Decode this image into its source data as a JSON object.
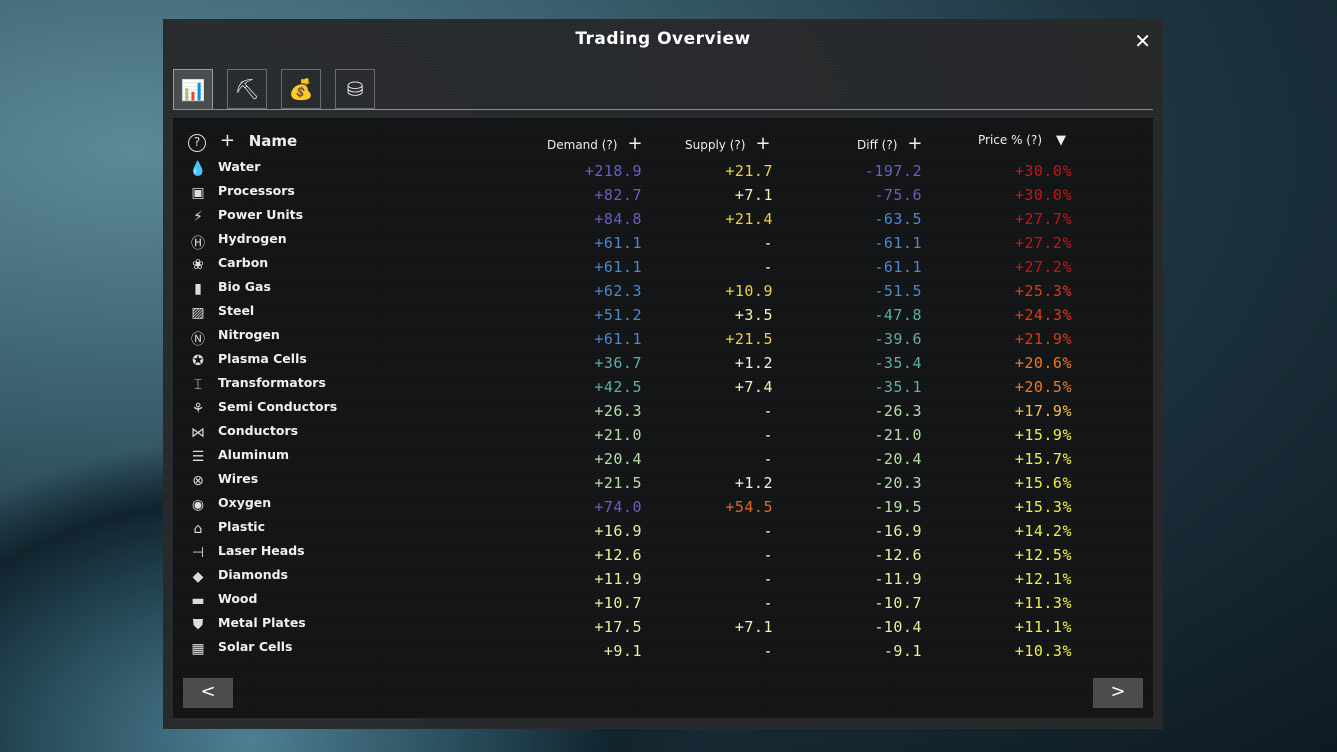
{
  "window": {
    "title": "Trading Overview",
    "close": "✕"
  },
  "tabs": [
    {
      "icon": "bar-chart-icon",
      "glyph": "📊"
    },
    {
      "icon": "trade-coins-icon",
      "glyph": "⛏"
    },
    {
      "icon": "money-bag-icon",
      "glyph": "💰"
    },
    {
      "icon": "coin-stacks-icon",
      "glyph": "⛁"
    }
  ],
  "header": {
    "help": "?",
    "add": "+",
    "name": "Name",
    "demand": "Demand (?)",
    "supply": "Supply (?)",
    "diff": "Diff (?)",
    "price": "Price % (?)",
    "sort": "▼"
  },
  "colors": {
    "purple": "#6a5ec4",
    "blue": "#4a8ad2",
    "teal": "#5cb0a6",
    "green": "#b6deaa",
    "lime": "#e4f29a",
    "yellow": "#f2d040",
    "lyellow": "#f8f2b0",
    "white": "#f4f4e0",
    "orange": "#e86424",
    "red": "#c41616",
    "redorange": "#e43618",
    "orange2": "#f07a22",
    "amber": "#f2c234",
    "yel2": "#f2f044"
  },
  "rows": [
    {
      "name": "Water",
      "icon": "water-drop-icon",
      "g": "💧",
      "demand": "+218.9",
      "dc": "purple",
      "supply": "+21.7",
      "sc": "yellow",
      "diff": "-197.2",
      "fc": "purple",
      "price": "+30.0%",
      "pc": "red"
    },
    {
      "name": "Processors",
      "icon": "processor-icon",
      "g": "▣",
      "demand": "+82.7",
      "dc": "purple",
      "supply": "+7.1",
      "sc": "lyellow",
      "diff": "-75.6",
      "fc": "purple",
      "price": "+30.0%",
      "pc": "red"
    },
    {
      "name": "Power Units",
      "icon": "power-unit-icon",
      "g": "⚡",
      "demand": "+84.8",
      "dc": "purple",
      "supply": "+21.4",
      "sc": "yellow",
      "diff": "-63.5",
      "fc": "blue",
      "price": "+27.7%",
      "pc": "red"
    },
    {
      "name": "Hydrogen",
      "icon": "hydrogen-icon",
      "g": "Ⓗ",
      "demand": "+61.1",
      "dc": "blue",
      "supply": "-",
      "sc": "white",
      "diff": "-61.1",
      "fc": "blue",
      "price": "+27.2%",
      "pc": "red"
    },
    {
      "name": "Carbon",
      "icon": "carbon-icon",
      "g": "❀",
      "demand": "+61.1",
      "dc": "blue",
      "supply": "-",
      "sc": "white",
      "diff": "-61.1",
      "fc": "blue",
      "price": "+27.2%",
      "pc": "red"
    },
    {
      "name": "Bio Gas",
      "icon": "bio-gas-icon",
      "g": "▮",
      "demand": "+62.3",
      "dc": "blue",
      "supply": "+10.9",
      "sc": "yellow",
      "diff": "-51.5",
      "fc": "blue",
      "price": "+25.3%",
      "pc": "redorange"
    },
    {
      "name": "Steel",
      "icon": "steel-icon",
      "g": "▨",
      "demand": "+51.2",
      "dc": "blue",
      "supply": "+3.5",
      "sc": "lyellow",
      "diff": "-47.8",
      "fc": "teal",
      "price": "+24.3%",
      "pc": "redorange"
    },
    {
      "name": "Nitrogen",
      "icon": "nitrogen-icon",
      "g": "Ⓝ",
      "demand": "+61.1",
      "dc": "blue",
      "supply": "+21.5",
      "sc": "yellow",
      "diff": "-39.6",
      "fc": "teal",
      "price": "+21.9%",
      "pc": "redorange"
    },
    {
      "name": "Plasma Cells",
      "icon": "plasma-cells-icon",
      "g": "✪",
      "demand": "+36.7",
      "dc": "teal",
      "supply": "+1.2",
      "sc": "white",
      "diff": "-35.4",
      "fc": "teal",
      "price": "+20.6%",
      "pc": "orange2"
    },
    {
      "name": "Transformators",
      "icon": "transformator-icon",
      "g": "⌶",
      "demand": "+42.5",
      "dc": "teal",
      "supply": "+7.4",
      "sc": "lyellow",
      "diff": "-35.1",
      "fc": "teal",
      "price": "+20.5%",
      "pc": "orange2"
    },
    {
      "name": "Semi Conductors",
      "icon": "semi-conductor-icon",
      "g": "⚘",
      "demand": "+26.3",
      "dc": "green",
      "supply": "-",
      "sc": "white",
      "diff": "-26.3",
      "fc": "green",
      "price": "+17.9%",
      "pc": "amber"
    },
    {
      "name": "Conductors",
      "icon": "conductor-icon",
      "g": "⋈",
      "demand": "+21.0",
      "dc": "green",
      "supply": "-",
      "sc": "white",
      "diff": "-21.0",
      "fc": "green",
      "price": "+15.9%",
      "pc": "yel2"
    },
    {
      "name": "Aluminum",
      "icon": "aluminum-icon",
      "g": "☰",
      "demand": "+20.4",
      "dc": "green",
      "supply": "-",
      "sc": "white",
      "diff": "-20.4",
      "fc": "green",
      "price": "+15.7%",
      "pc": "yel2"
    },
    {
      "name": "Wires",
      "icon": "wires-icon",
      "g": "⊗",
      "demand": "+21.5",
      "dc": "green",
      "supply": "+1.2",
      "sc": "white",
      "diff": "-20.3",
      "fc": "green",
      "price": "+15.6%",
      "pc": "yel2"
    },
    {
      "name": "Oxygen",
      "icon": "oxygen-icon",
      "g": "◉",
      "demand": "+74.0",
      "dc": "purple",
      "supply": "+54.5",
      "sc": "orange",
      "diff": "-19.5",
      "fc": "green",
      "price": "+15.3%",
      "pc": "yel2"
    },
    {
      "name": "Plastic",
      "icon": "plastic-icon",
      "g": "⌂",
      "demand": "+16.9",
      "dc": "lime",
      "supply": "-",
      "sc": "white",
      "diff": "-16.9",
      "fc": "lime",
      "price": "+14.2%",
      "pc": "yel2"
    },
    {
      "name": "Laser Heads",
      "icon": "laser-head-icon",
      "g": "⊣",
      "demand": "+12.6",
      "dc": "lime",
      "supply": "-",
      "sc": "white",
      "diff": "-12.6",
      "fc": "lime",
      "price": "+12.5%",
      "pc": "yel2"
    },
    {
      "name": "Diamonds",
      "icon": "diamond-icon",
      "g": "◆",
      "demand": "+11.9",
      "dc": "lime",
      "supply": "-",
      "sc": "white",
      "diff": "-11.9",
      "fc": "lime",
      "price": "+12.1%",
      "pc": "yel2"
    },
    {
      "name": "Wood",
      "icon": "wood-icon",
      "g": "▬",
      "demand": "+10.7",
      "dc": "lime",
      "supply": "-",
      "sc": "white",
      "diff": "-10.7",
      "fc": "lime",
      "price": "+11.3%",
      "pc": "yel2"
    },
    {
      "name": "Metal Plates",
      "icon": "metal-plates-icon",
      "g": "⛊",
      "demand": "+17.5",
      "dc": "lime",
      "supply": "+7.1",
      "sc": "lyellow",
      "diff": "-10.4",
      "fc": "lime",
      "price": "+11.1%",
      "pc": "yel2"
    },
    {
      "name": "Solar Cells",
      "icon": "solar-cell-icon",
      "g": "▦",
      "demand": "+9.1",
      "dc": "lime",
      "supply": "-",
      "sc": "white",
      "diff": "-9.1",
      "fc": "lime",
      "price": "+10.3%",
      "pc": "yel2"
    }
  ],
  "nav": {
    "prev": "<",
    "next": ">"
  }
}
